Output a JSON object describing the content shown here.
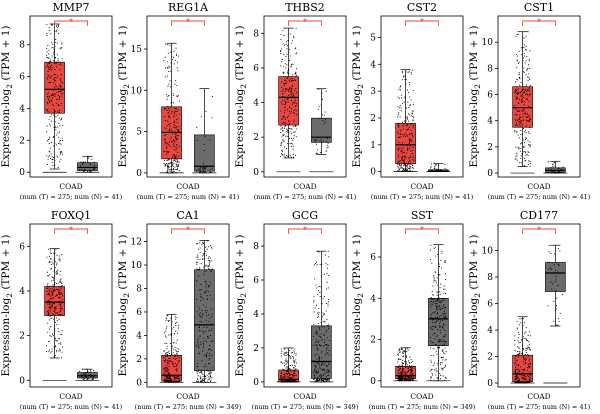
{
  "figure": {
    "background": "#ffffff"
  },
  "colors": {
    "tumor": "#e8473f",
    "normal": "#6b6b6b",
    "significance": "#e8473f",
    "points": "#000000"
  },
  "chart_data": [
    {
      "type": "box",
      "title": "MMP7",
      "xlabel": "COAD",
      "note": "(num (T) = 275; num (N) = 41)",
      "ylabel": "Expression-log2 (TPM + 1)",
      "yticks": [
        0,
        2,
        4,
        6,
        8
      ],
      "ylim": [
        -0.3,
        9.8
      ],
      "significance": "*",
      "series": [
        {
          "group": "T",
          "n": 275,
          "min": 0.2,
          "q1": 3.7,
          "median": 5.2,
          "q3": 6.9,
          "max": 9.3,
          "color": "#e8473f"
        },
        {
          "group": "N",
          "n": 41,
          "min": 0.0,
          "q1": 0.1,
          "median": 0.3,
          "q3": 0.6,
          "max": 1.0,
          "color": "#6b6b6b"
        }
      ]
    },
    {
      "type": "box",
      "title": "REG1A",
      "xlabel": "COAD",
      "note": "(num (T) = 275; num (N) = 41)",
      "ylabel": "Expression-log2 (TPM + 1)",
      "yticks": [
        0,
        5,
        10,
        15
      ],
      "ylim": [
        -0.5,
        19
      ],
      "significance": "*",
      "series": [
        {
          "group": "T",
          "n": 275,
          "min": 0.0,
          "q1": 1.7,
          "median": 4.9,
          "q3": 8.0,
          "max": 15.7,
          "color": "#e8473f"
        },
        {
          "group": "N",
          "n": 41,
          "min": 0.0,
          "q1": 0.2,
          "median": 0.8,
          "q3": 4.6,
          "max": 10.2,
          "color": "#6b6b6b"
        }
      ]
    },
    {
      "type": "box",
      "title": "THBS2",
      "xlabel": "COAD",
      "note": "(num (T) = 275; num (N) = 41)",
      "ylabel": "Expression-log2 (TPM + 1)",
      "yticks": [
        0,
        2,
        4,
        6,
        8
      ],
      "ylim": [
        -0.3,
        9.0
      ],
      "significance": "*",
      "series": [
        {
          "group": "T",
          "n": 275,
          "min": 0.8,
          "q1": 2.7,
          "median": 4.3,
          "q3": 5.5,
          "max": 8.3,
          "color": "#e8473f"
        },
        {
          "group": "N",
          "n": 41,
          "min": 1.0,
          "q1": 1.7,
          "median": 2.0,
          "q3": 3.1,
          "max": 4.8,
          "color": "#6b6b6b"
        }
      ]
    },
    {
      "type": "box",
      "title": "CST2",
      "xlabel": "COAD",
      "note": "(num (T) = 275; num (N) = 41)",
      "ylabel": "Expression-log2 (TPM + 1)",
      "yticks": [
        0,
        1,
        2,
        3,
        4,
        5
      ],
      "ylim": [
        -0.2,
        5.8
      ],
      "significance": "*",
      "series": [
        {
          "group": "T",
          "n": 275,
          "min": 0.0,
          "q1": 0.3,
          "median": 1.0,
          "q3": 1.8,
          "max": 3.8,
          "color": "#e8473f"
        },
        {
          "group": "N",
          "n": 41,
          "min": 0.0,
          "q1": 0.0,
          "median": 0.02,
          "q3": 0.07,
          "max": 0.3,
          "color": "#6b6b6b"
        }
      ]
    },
    {
      "type": "box",
      "title": "CST1",
      "xlabel": "COAD",
      "note": "(num (T) = 275; num (N) = 41)",
      "ylabel": "Expression-log2 (TPM + 1)",
      "yticks": [
        0,
        2,
        4,
        6,
        8,
        10
      ],
      "ylim": [
        -0.3,
        12
      ],
      "significance": "*",
      "series": [
        {
          "group": "T",
          "n": 275,
          "min": 0.5,
          "q1": 3.5,
          "median": 5.0,
          "q3": 6.6,
          "max": 10.8,
          "color": "#e8473f"
        },
        {
          "group": "N",
          "n": 41,
          "min": 0.0,
          "q1": 0.05,
          "median": 0.2,
          "q3": 0.4,
          "max": 0.9,
          "color": "#6b6b6b"
        }
      ]
    },
    {
      "type": "box",
      "title": "FOXQ1",
      "xlabel": "COAD",
      "note": "(num (T) = 275; num (N) = 41)",
      "ylabel": "Expression-log2 (TPM + 1)",
      "yticks": [
        0,
        2,
        4,
        6
      ],
      "ylim": [
        -0.3,
        7.0
      ],
      "significance": "*",
      "series": [
        {
          "group": "T",
          "n": 275,
          "min": 1.0,
          "q1": 2.9,
          "median": 3.5,
          "q3": 4.2,
          "max": 5.9,
          "color": "#e8473f"
        },
        {
          "group": "N",
          "n": 41,
          "min": 0.0,
          "q1": 0.1,
          "median": 0.2,
          "q3": 0.35,
          "max": 0.5,
          "color": "#6b6b6b"
        }
      ]
    },
    {
      "type": "box",
      "title": "CA1",
      "xlabel": "COAD",
      "note": "(num (T) = 275; num (N) = 349)",
      "ylabel": "Expression-log2 (TPM + 1)",
      "yticks": [
        0,
        2,
        4,
        6,
        8,
        10,
        12
      ],
      "ylim": [
        -0.4,
        13.5
      ],
      "significance": "*",
      "series": [
        {
          "group": "T",
          "n": 275,
          "min": 0.0,
          "q1": 0.1,
          "median": 0.6,
          "q3": 2.3,
          "max": 5.8,
          "color": "#e8473f"
        },
        {
          "group": "N",
          "n": 349,
          "min": 0.0,
          "q1": 1.0,
          "median": 4.9,
          "q3": 9.6,
          "max": 12.1,
          "color": "#6b6b6b"
        }
      ]
    },
    {
      "type": "box",
      "title": "GCG",
      "xlabel": "COAD",
      "note": "(num (T) = 275; num (N) = 349)",
      "ylabel": "Expression-log2 (TPM + 1)",
      "yticks": [
        0,
        2,
        4,
        6,
        8
      ],
      "ylim": [
        -0.3,
        9.3
      ],
      "significance": "*",
      "series": [
        {
          "group": "T",
          "n": 275,
          "min": 0.0,
          "q1": 0.0,
          "median": 0.15,
          "q3": 0.7,
          "max": 2.0,
          "color": "#e8473f"
        },
        {
          "group": "N",
          "n": 349,
          "min": 0.0,
          "q1": 0.2,
          "median": 1.2,
          "q3": 3.3,
          "max": 7.7,
          "color": "#6b6b6b"
        }
      ]
    },
    {
      "type": "box",
      "title": "SST",
      "xlabel": "COAD",
      "note": "(num (T) = 275; num (N) = 349)",
      "ylabel": "Expression-log2 (TPM + 1)",
      "yticks": [
        0,
        2,
        4,
        6
      ],
      "ylim": [
        -0.3,
        7.6
      ],
      "significance": "*",
      "series": [
        {
          "group": "T",
          "n": 275,
          "min": 0.0,
          "q1": 0.1,
          "median": 0.25,
          "q3": 0.7,
          "max": 1.6,
          "color": "#e8473f"
        },
        {
          "group": "N",
          "n": 349,
          "min": 0.0,
          "q1": 1.7,
          "median": 3.0,
          "q3": 4.0,
          "max": 6.6,
          "color": "#6b6b6b"
        }
      ]
    },
    {
      "type": "box",
      "title": "CD177",
      "xlabel": "COAD",
      "note": "(num (T) = 275; num (N) = 41)",
      "ylabel": "Expression-log2 (TPM + 1)",
      "yticks": [
        0,
        2,
        4,
        6,
        8,
        10
      ],
      "ylim": [
        -0.3,
        12
      ],
      "significance": "*",
      "series": [
        {
          "group": "T",
          "n": 275,
          "min": 0.0,
          "q1": 0.1,
          "median": 0.7,
          "q3": 2.1,
          "max": 5.0,
          "color": "#e8473f"
        },
        {
          "group": "N",
          "n": 41,
          "min": 4.3,
          "q1": 6.9,
          "median": 8.3,
          "q3": 9.1,
          "max": 10.4,
          "color": "#6b6b6b"
        }
      ]
    }
  ]
}
